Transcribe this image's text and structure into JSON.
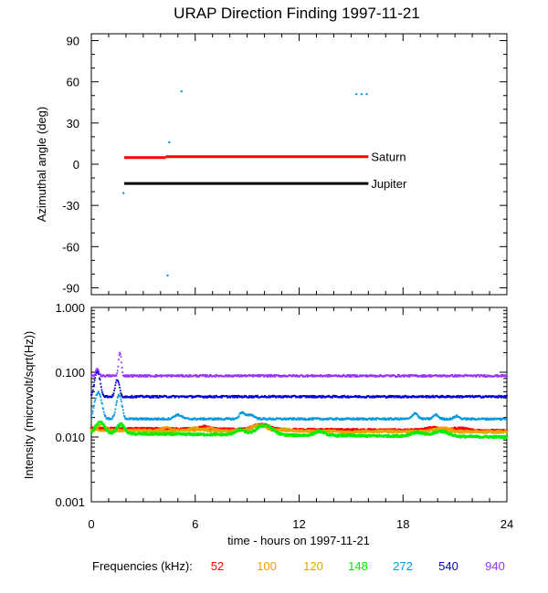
{
  "chart_data": [
    {
      "type": "scatter",
      "title": "URAP Direction Finding  1997-11-21",
      "ylabel": "Azimuthal angle (deg)",
      "xlim": [
        0,
        24
      ],
      "ylim": [
        -95,
        95
      ],
      "yticks": [
        90,
        60,
        30,
        0,
        -30,
        -60,
        -90
      ],
      "lines": [
        {
          "name": "Saturn",
          "color": "#ff0000",
          "y": 5.5,
          "x": [
            1.9,
            16.0
          ]
        },
        {
          "name": "Jupiter",
          "color": "#000000",
          "y": -14,
          "x": [
            1.9,
            16.0
          ]
        }
      ],
      "points": [
        {
          "x": 1.85,
          "y": -21,
          "color": "#0099dd"
        },
        {
          "x": 4.4,
          "y": -81,
          "color": "#0099dd"
        },
        {
          "x": 4.5,
          "y": 16,
          "color": "#0099dd"
        },
        {
          "x": 5.2,
          "y": 53,
          "color": "#0099dd"
        },
        {
          "x": 15.3,
          "y": 51,
          "color": "#0099dd"
        },
        {
          "x": 15.6,
          "y": 51,
          "color": "#0099dd"
        },
        {
          "x": 15.9,
          "y": 51,
          "color": "#0099dd"
        }
      ]
    },
    {
      "type": "scatter",
      "ylabel": "Intensity (microvolt/sqrt(Hz))",
      "xlabel": "time - hours on 1997-11-21",
      "xlim": [
        0,
        24
      ],
      "xticks": [
        0,
        6,
        12,
        18,
        24
      ],
      "ylim_log": [
        0.001,
        1
      ],
      "yscale": "log",
      "ytick_labels": [
        "1.000",
        "0.100",
        "0.010",
        "0.001"
      ],
      "series": [
        {
          "name": "52",
          "color": "#ff0000",
          "base": 0.0135,
          "end": 0.0125
        },
        {
          "name": "100",
          "color": "#ff9900",
          "base": 0.0128,
          "end": 0.0122
        },
        {
          "name": "120",
          "color": "#ddaa00",
          "base": 0.0125,
          "end": 0.0118
        },
        {
          "name": "148",
          "color": "#00ee00",
          "base": 0.0113,
          "end": 0.01
        },
        {
          "name": "272",
          "color": "#0099dd",
          "base": 0.019,
          "end": 0.019
        },
        {
          "name": "540",
          "color": "#0000cc",
          "base": 0.042,
          "end": 0.042
        },
        {
          "name": "940",
          "color": "#9933ff",
          "base": 0.088,
          "end": 0.088
        }
      ]
    }
  ],
  "legend": {
    "label": "Frequencies (kHz):",
    "entries": [
      {
        "name": "52",
        "color": "#ff0000"
      },
      {
        "name": "100",
        "color": "#ff9900"
      },
      {
        "name": "120",
        "color": "#ddaa00"
      },
      {
        "name": "148",
        "color": "#00ee00"
      },
      {
        "name": "272",
        "color": "#0099dd"
      },
      {
        "name": "540",
        "color": "#0000cc"
      },
      {
        "name": "940",
        "color": "#9933ff"
      }
    ]
  }
}
